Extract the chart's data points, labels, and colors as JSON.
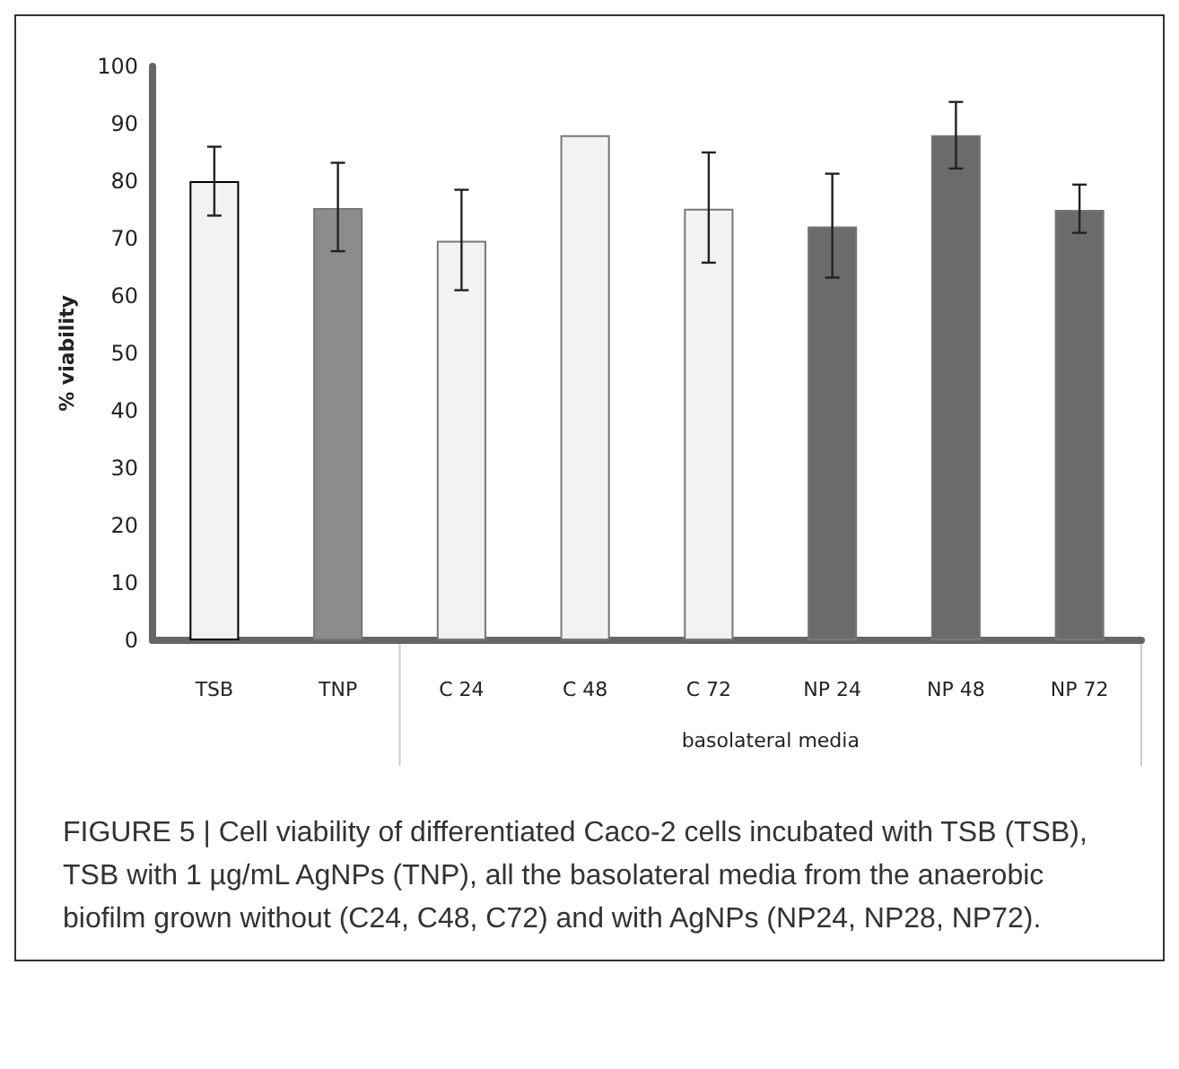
{
  "chart_data": {
    "type": "bar",
    "ylabel": "% viability",
    "categories": [
      "TSB",
      "TNP",
      "C 24",
      "C 48",
      "C 72",
      "NP 24",
      "NP 48",
      "NP 72"
    ],
    "values": [
      80,
      75.3,
      69.6,
      88,
      75.2,
      72.1,
      88,
      75
    ],
    "colors": [
      "#f2f2f2",
      "#8c8c8c",
      "#f2f2f2",
      "#f2f2f2",
      "#f2f2f2",
      "#6b6b6b",
      "#6b6b6b",
      "#6b6b6b"
    ],
    "errors": [
      [
        74,
        86
      ],
      [
        67.8,
        83.2
      ],
      [
        61,
        78.5
      ],
      null,
      [
        65.8,
        85
      ],
      [
        63.2,
        81.3
      ],
      [
        82.2,
        93.8
      ],
      [
        71,
        79.4
      ]
    ],
    "ylim": [
      0,
      100
    ],
    "yticks": [
      0,
      10,
      20,
      30,
      40,
      50,
      60,
      70,
      80,
      90,
      100
    ],
    "grid": false,
    "annotations": [
      "basolateral media",
      "FIGURE 5 | Cell viability of differentiated Caco-2 cells incubated with TSB (TSB), TSB with 1 µg/mL AgNPs (TNP), all the basolateral media from the anaerobic biofilm grown without (C24, C48, C72) and with AgNPs (NP24, NP28, NP72)."
    ]
  }
}
